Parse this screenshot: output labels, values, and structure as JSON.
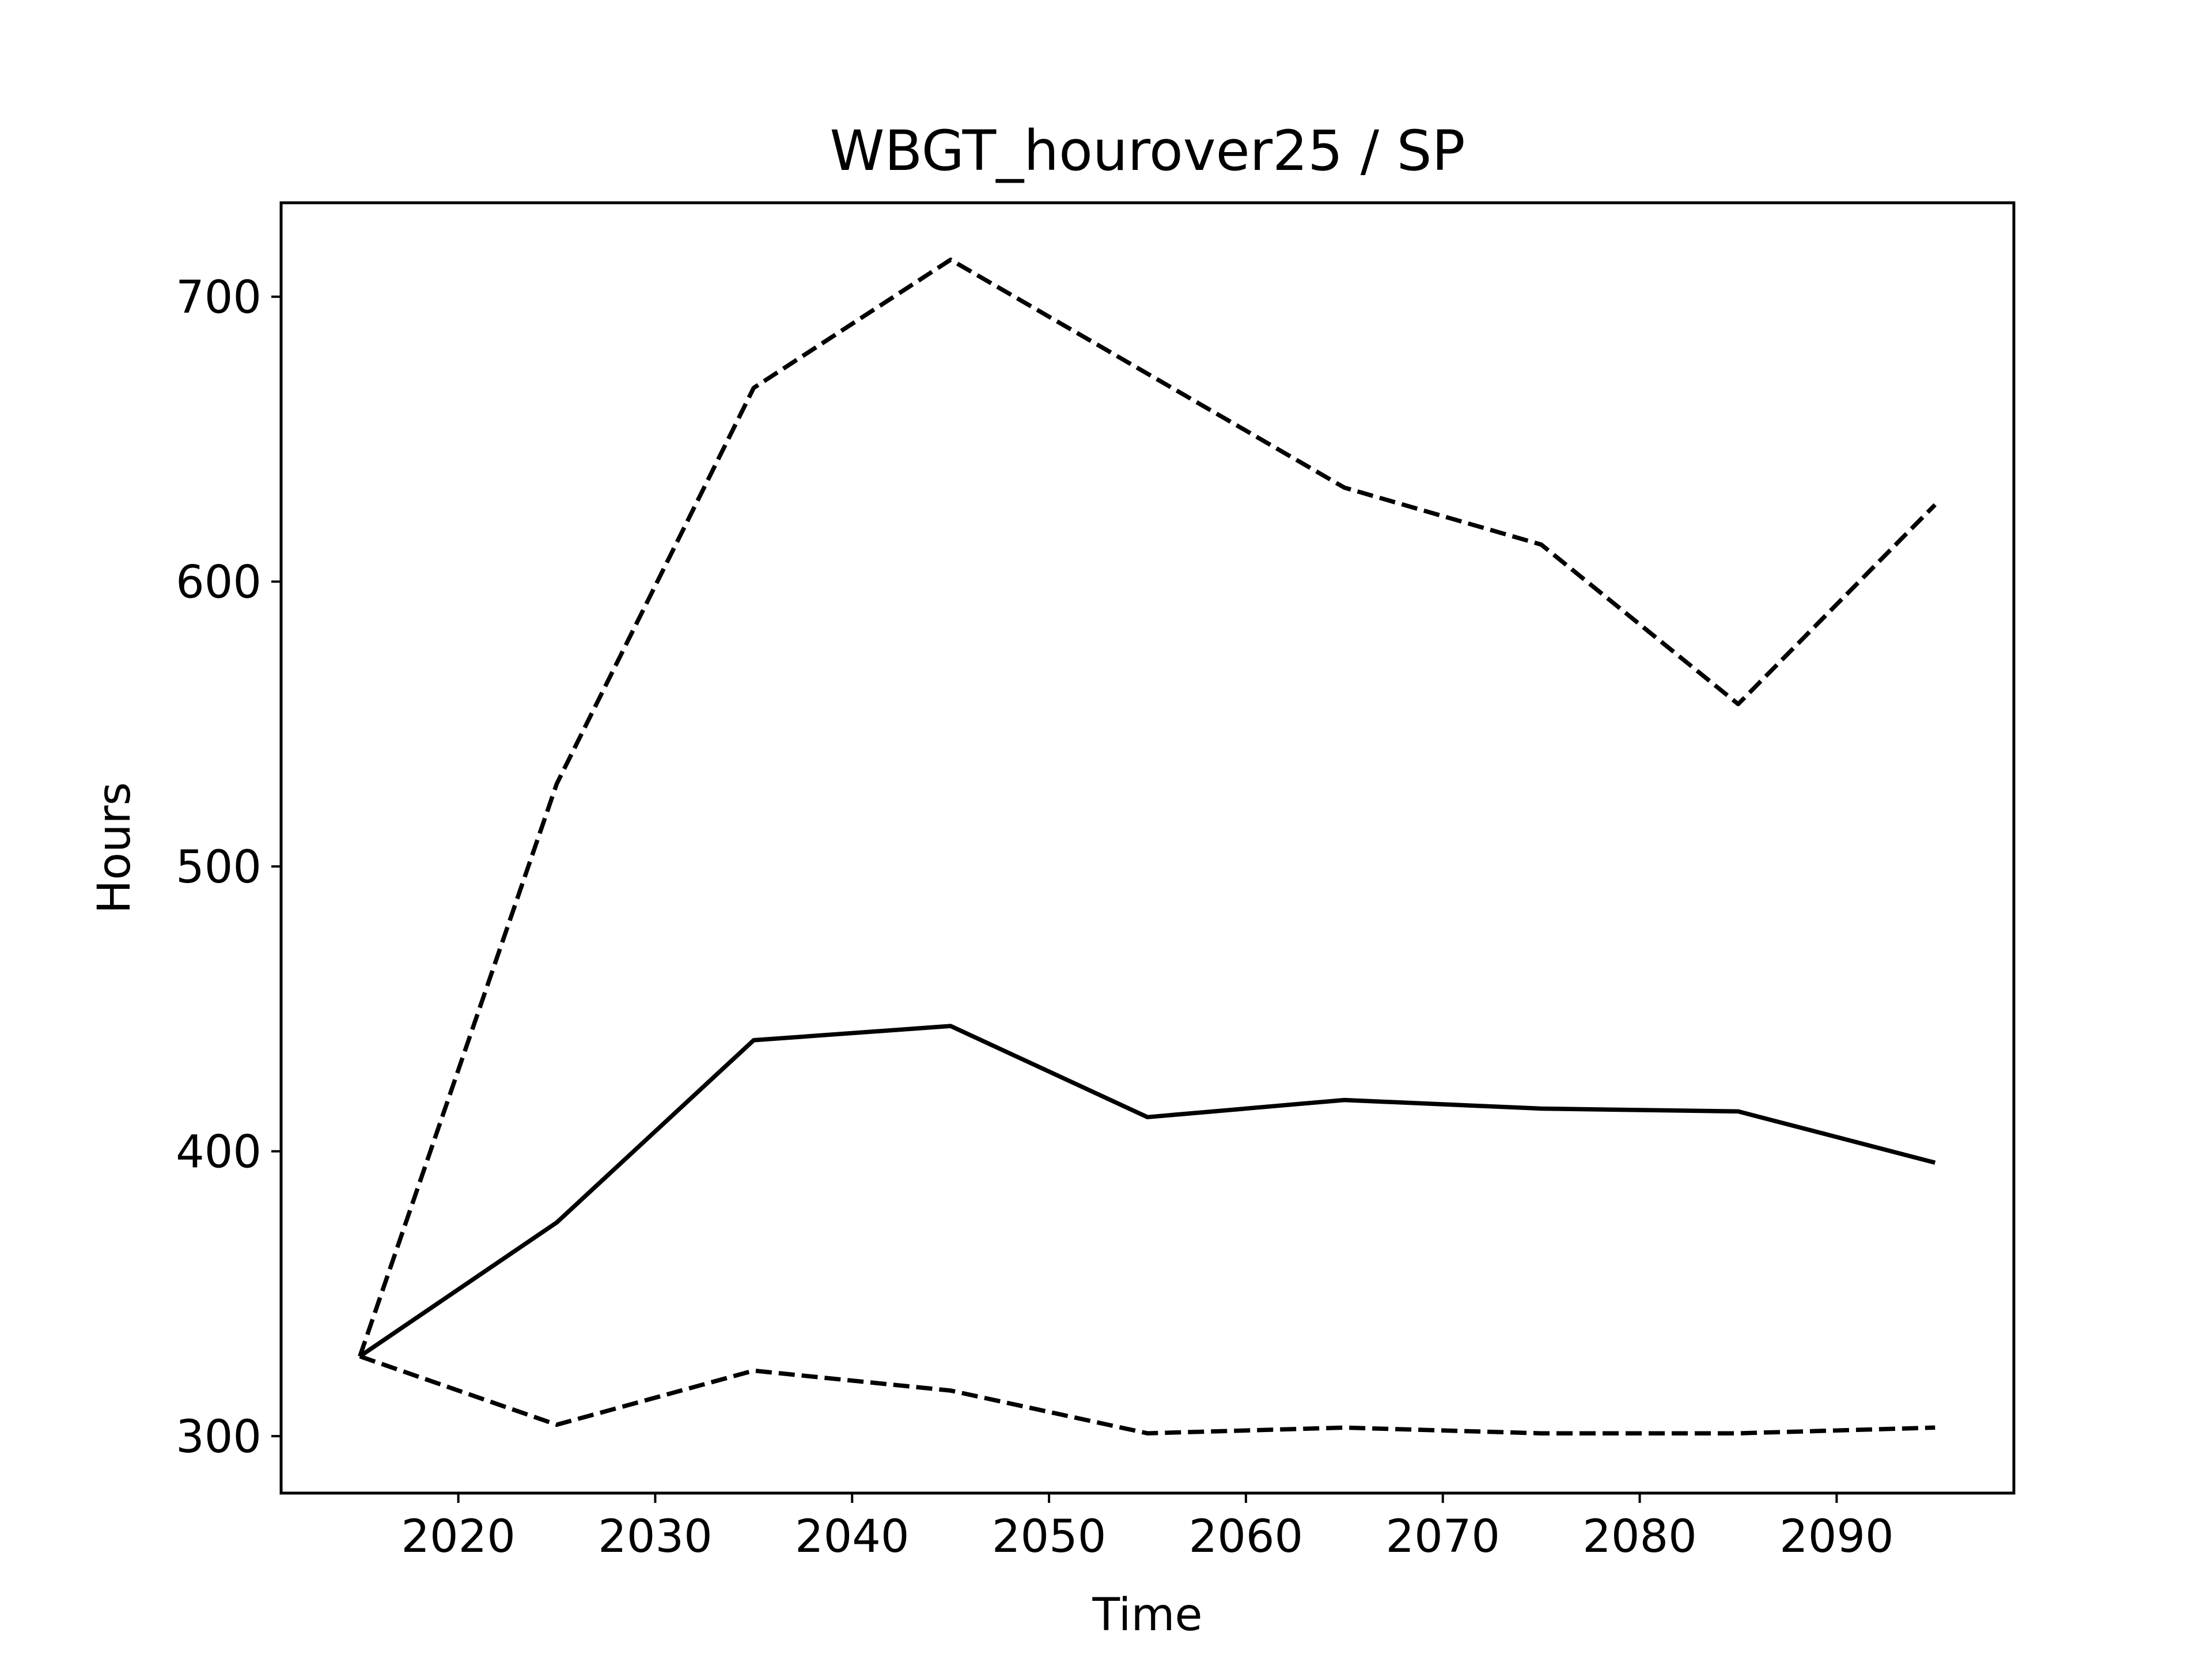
{
  "chart_data": {
    "type": "line",
    "title": "WBGT_hourover25 / SP",
    "xlabel": "Time",
    "ylabel": "Hours",
    "x": [
      2015,
      2025,
      2035,
      2045,
      2055,
      2065,
      2075,
      2085,
      2095
    ],
    "xlim": [
      2011,
      2099
    ],
    "ylim": [
      280,
      733
    ],
    "xticks": [
      "2020",
      "2030",
      "2040",
      "2050",
      "2060",
      "2070",
      "2080",
      "2090"
    ],
    "yticks": [
      "300",
      "400",
      "500",
      "600",
      "700"
    ],
    "grid": false,
    "legend": "none",
    "series": [
      {
        "line_style": "solid",
        "color": "#000000",
        "values": [
          328,
          375,
          439,
          444,
          412,
          418,
          415,
          414,
          396
        ]
      },
      {
        "line_style": "dashed",
        "color": "#000000",
        "values": [
          328,
          529,
          668,
          713,
          673,
          633,
          613,
          557,
          627
        ]
      },
      {
        "line_style": "dashed",
        "color": "#000000",
        "values": [
          328,
          304,
          323,
          316,
          301,
          303,
          301,
          301,
          303
        ]
      }
    ]
  }
}
